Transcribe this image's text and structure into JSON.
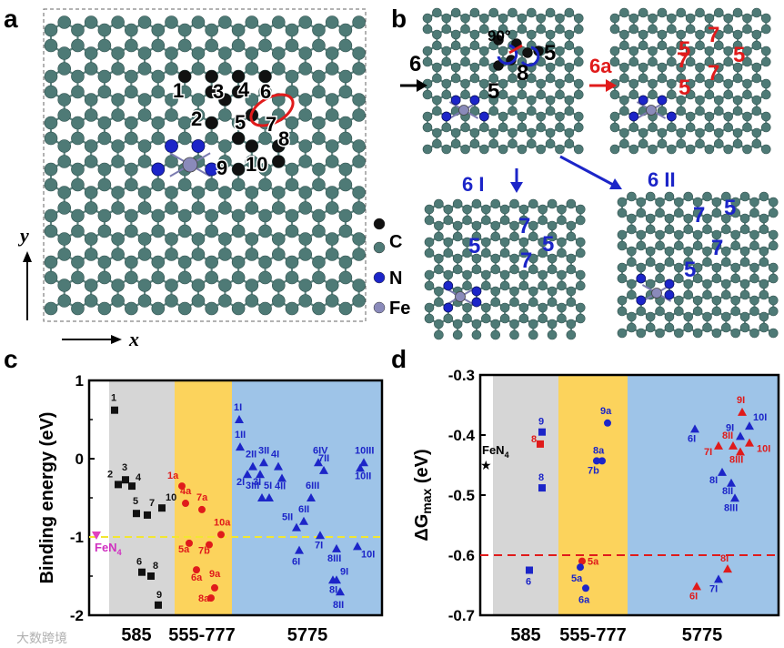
{
  "colors": {
    "carbon_teal": "#4e7a76",
    "carbon_black": "#111111",
    "nitrogen": "#1c25c8",
    "iron": "#8a8aba",
    "red": "#e01b1b",
    "blue": "#1c25c8",
    "gray_band": "#d6d6d6",
    "yellow_band": "#fcd35c",
    "blue_band": "#9ec4e8"
  },
  "panel_labels": [
    "a",
    "b",
    "c",
    "d"
  ],
  "panel_a": {
    "atom_numbers": [
      "1",
      "2",
      "3",
      "4",
      "5",
      "6",
      "7",
      "8",
      "9",
      "10"
    ],
    "legend": [
      {
        "label": "C",
        "color": "#111111"
      },
      {
        "label": "C",
        "color": "#4e7a76"
      },
      {
        "label": "N",
        "color": "#1c25c8"
      },
      {
        "label": "Fe",
        "color": "#8a8aba"
      }
    ],
    "axis_x": "x",
    "axis_y": "y"
  },
  "panel_b": {
    "labels_black": [
      "6",
      "90°",
      "5",
      "5",
      "8"
    ],
    "label_6a": "6a",
    "labels_6a_numbers": [
      "5",
      "7",
      "7",
      "5",
      "7",
      "5"
    ],
    "label_6I": "6 I",
    "labels_6I_numbers": [
      "7",
      "5",
      "5",
      "7"
    ],
    "label_6II": "6 II",
    "labels_6II_numbers": [
      "7",
      "5",
      "7",
      "5"
    ]
  },
  "chart_data": [
    {
      "panel": "c",
      "type": "scatter",
      "ylabel": "Binding energy (eV)",
      "ylim": [
        -2,
        1
      ],
      "yticks": [
        "1",
        "0",
        "-1",
        "-2"
      ],
      "categories": [
        "585",
        "555-777",
        "5775"
      ],
      "reference_line": {
        "label": "FeN4",
        "label_main": "FeN",
        "label_sub": "4",
        "value": -1.0
      },
      "series": [
        {
          "name": "585",
          "marker": "square",
          "color": "#111111",
          "points": [
            {
              "label": "1",
              "y": 0.62
            },
            {
              "label": "2",
              "y": -0.33
            },
            {
              "label": "3",
              "y": -0.27
            },
            {
              "label": "4",
              "y": -0.35
            },
            {
              "label": "5",
              "y": -0.7
            },
            {
              "label": "7",
              "y": -0.72
            },
            {
              "label": "10",
              "y": -0.63
            },
            {
              "label": "6",
              "y": -1.45
            },
            {
              "label": "8",
              "y": -1.5
            },
            {
              "label": "9",
              "y": -1.87
            }
          ]
        },
        {
          "name": "555-777",
          "marker": "circle",
          "color": "#e01b1b",
          "points": [
            {
              "label": "1a",
              "y": -0.35
            },
            {
              "label": "4a",
              "y": -0.57
            },
            {
              "label": "7a",
              "y": -0.65
            },
            {
              "label": "10a",
              "y": -0.97
            },
            {
              "label": "5a",
              "y": -1.08
            },
            {
              "label": "7b",
              "y": -1.1
            },
            {
              "label": "6a",
              "y": -1.42
            },
            {
              "label": "9a",
              "y": -1.65
            },
            {
              "label": "8a",
              "y": -1.78
            }
          ]
        },
        {
          "name": "5775",
          "marker": "triangle",
          "color": "#1c25c8",
          "points": [
            {
              "label": "1I",
              "y": 0.5
            },
            {
              "label": "1II",
              "y": 0.15
            },
            {
              "label": "2I",
              "y": -0.2
            },
            {
              "label": "2II",
              "y": -0.1
            },
            {
              "label": "3I",
              "y": -0.2
            },
            {
              "label": "3II",
              "y": -0.05
            },
            {
              "label": "4I",
              "y": -0.1
            },
            {
              "label": "4II",
              "y": -0.25
            },
            {
              "label": "5I",
              "y": -0.5
            },
            {
              "label": "3III",
              "y": -0.5
            },
            {
              "label": "6IV",
              "y": -0.05
            },
            {
              "label": "7II",
              "y": -0.15
            },
            {
              "label": "6III",
              "y": -0.5
            },
            {
              "label": "6II",
              "y": -0.8
            },
            {
              "label": "5II",
              "y": -0.88
            },
            {
              "label": "7I",
              "y": -0.98
            },
            {
              "label": "6I",
              "y": -1.17
            },
            {
              "label": "8III",
              "y": -1.15
            },
            {
              "label": "10I",
              "y": -1.12
            },
            {
              "label": "9I",
              "y": -1.55
            },
            {
              "label": "8I",
              "y": -1.55
            },
            {
              "label": "8II",
              "y": -1.7
            },
            {
              "label": "10II",
              "y": -0.12
            },
            {
              "label": "10III",
              "y": -0.05
            }
          ]
        }
      ]
    },
    {
      "panel": "d",
      "type": "scatter",
      "ylabel": "ΔGmax (eV)",
      "ylabel_main": "ΔG",
      "ylabel_sub": "max",
      "ylabel_tail": " (eV)",
      "ylim": [
        -0.7,
        -0.3
      ],
      "yticks": [
        "-0.3",
        "-0.4",
        "-0.5",
        "-0.6",
        "-0.7"
      ],
      "categories": [
        "585",
        "555-777",
        "5775"
      ],
      "reference_line": {
        "value": -0.6
      },
      "reference_point": {
        "label": "FeN4",
        "label_main": "FeN",
        "label_sub": "4",
        "y": -0.45
      },
      "series": [
        {
          "name": "585 (red)",
          "marker": "square",
          "color": "#e01b1b",
          "points": [
            {
              "label": "8",
              "y": -0.415
            }
          ]
        },
        {
          "name": "585 (blue)",
          "marker": "square",
          "color": "#1c25c8",
          "points": [
            {
              "label": "9",
              "y": -0.395
            },
            {
              "label": "8",
              "y": -0.488
            },
            {
              "label": "6",
              "y": -0.625
            }
          ]
        },
        {
          "name": "555-777 (red)",
          "marker": "circle",
          "color": "#e01b1b",
          "points": [
            {
              "label": "5a",
              "y": -0.61
            }
          ]
        },
        {
          "name": "555-777 (blue)",
          "marker": "circle",
          "color": "#1c25c8",
          "points": [
            {
              "label": "9a",
              "y": -0.38
            },
            {
              "label": "8a",
              "y": -0.443
            },
            {
              "label": "7b",
              "y": -0.443
            },
            {
              "label": "5a",
              "y": -0.62
            },
            {
              "label": "6a",
              "y": -0.655
            }
          ]
        },
        {
          "name": "5775 (red)",
          "marker": "triangle",
          "color": "#e01b1b",
          "points": [
            {
              "label": "9I",
              "y": -0.362
            },
            {
              "label": "8II",
              "y": -0.418
            },
            {
              "label": "7I",
              "y": -0.418
            },
            {
              "label": "10I",
              "y": -0.413
            },
            {
              "label": "8III",
              "y": -0.428
            },
            {
              "label": "8I",
              "y": -0.623
            },
            {
              "label": "6I",
              "y": -0.652
            }
          ]
        },
        {
          "name": "5775 (blue)",
          "marker": "triangle",
          "color": "#1c25c8",
          "points": [
            {
              "label": "6I",
              "y": -0.39
            },
            {
              "label": "10I",
              "y": -0.385
            },
            {
              "label": "9I",
              "y": -0.402
            },
            {
              "label": "8I",
              "y": -0.462
            },
            {
              "label": "8II",
              "y": -0.48
            },
            {
              "label": "8III",
              "y": -0.505
            },
            {
              "label": "7I",
              "y": -0.64
            }
          ]
        }
      ]
    }
  ],
  "watermark": "大数跨境"
}
